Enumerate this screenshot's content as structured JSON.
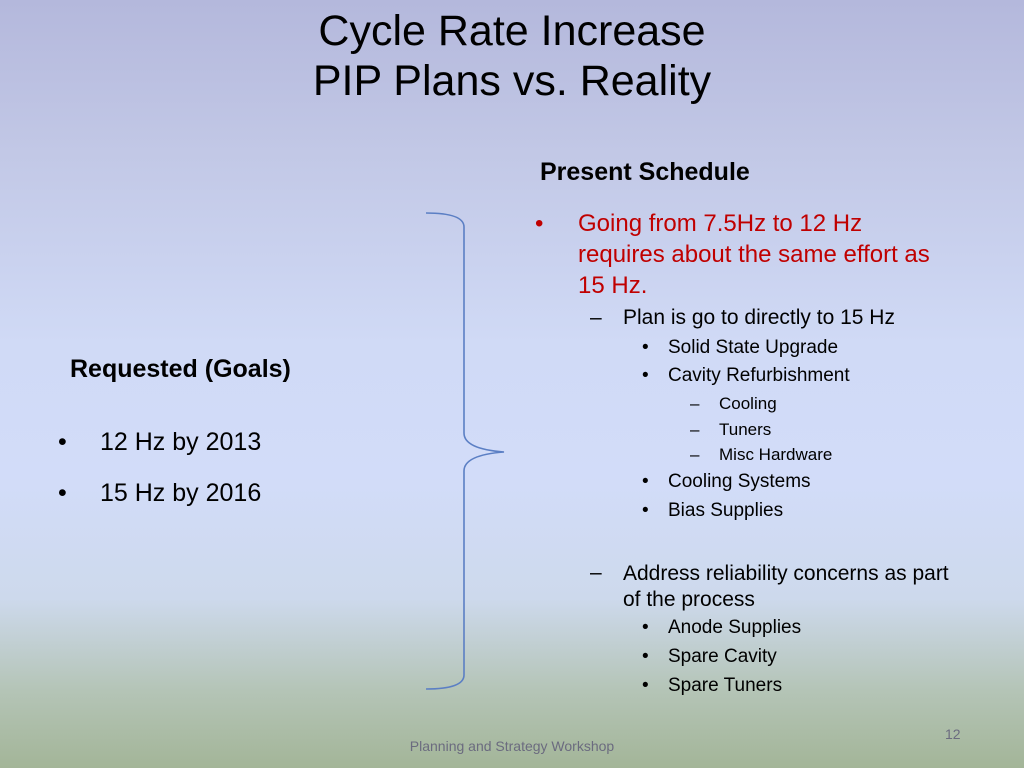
{
  "slide": {
    "title_line1": "Cycle Rate Increase",
    "title_line2": "PIP Plans vs. Reality"
  },
  "requested": {
    "heading": "Requested (Goals)",
    "goals": [
      "12 Hz by 2013",
      "15 Hz by 2016"
    ]
  },
  "present": {
    "heading": "Present Schedule",
    "main_point": "Going from 7.5Hz to 12 Hz requires about the same effort as 15 Hz.",
    "plan": "Plan is go to directly to 15 Hz",
    "plan_items": {
      "solid_state": "Solid State Upgrade",
      "cavity": "Cavity Refurbishment",
      "cavity_sub": [
        "Cooling",
        "Tuners",
        "Misc Hardware"
      ],
      "cooling_systems": "Cooling Systems",
      "bias": "Bias Supplies"
    },
    "reliability": "Address reliability concerns as part of the process",
    "reliability_items": [
      "Anode Supplies",
      "Spare Cavity",
      "Spare Tuners"
    ]
  },
  "footer": {
    "text": "Planning and Strategy Workshop",
    "page_number": "12"
  },
  "colors": {
    "emphasis": "#c00000",
    "brace": "#5b7fc4"
  }
}
